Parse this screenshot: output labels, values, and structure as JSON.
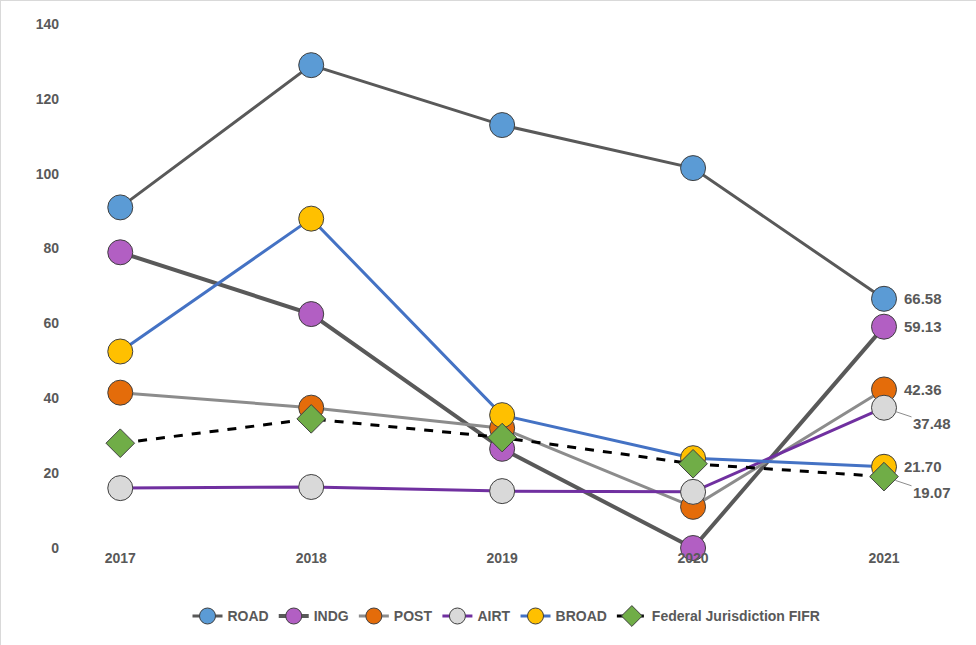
{
  "chart_data": {
    "type": "line",
    "categories": [
      "2017",
      "2018",
      "2019",
      "2020",
      "2021"
    ],
    "ylim": [
      0,
      140
    ],
    "yticks": [
      0,
      20,
      40,
      60,
      80,
      100,
      120,
      140
    ],
    "grid": false,
    "legend": "bottom",
    "series": [
      {
        "name": "ROAD",
        "color": "#5b9bd5",
        "marker": "circle",
        "line_style": "solid",
        "values": [
          91,
          129,
          113,
          101.5,
          66.58
        ],
        "value_labels": [
          null,
          null,
          null,
          null,
          "66.58"
        ]
      },
      {
        "name": "INDG",
        "color": "#b25fc3",
        "marker": "circle",
        "line_style": "solid",
        "values": [
          79,
          62.5,
          26.5,
          0,
          59.13
        ],
        "value_labels": [
          null,
          null,
          null,
          null,
          "59.13"
        ]
      },
      {
        "name": "POST",
        "color": "#e46c0a",
        "marker": "circle",
        "line_style": "solid",
        "values": [
          41.5,
          37.5,
          32,
          11,
          42.36
        ],
        "value_labels": [
          null,
          null,
          null,
          null,
          "42.36"
        ]
      },
      {
        "name": "AIRT",
        "color": "#d9d9d9",
        "marker": "circle",
        "line_style": "solid",
        "values": [
          16,
          16.3,
          15.2,
          15,
          37.48
        ],
        "value_labels": [
          null,
          null,
          null,
          null,
          "37.48"
        ]
      },
      {
        "name": "BROAD",
        "color": "#ffc000",
        "marker": "circle",
        "line_style": "solid",
        "values": [
          52.5,
          88,
          35.5,
          24,
          21.7
        ],
        "value_labels": [
          null,
          null,
          null,
          null,
          "21.70"
        ]
      },
      {
        "name": "Federal Jurisdiction FIFR",
        "color": "#70ad47",
        "marker": "diamond",
        "line_style": "dash",
        "values": [
          28,
          34.5,
          29.5,
          22.5,
          19.07
        ],
        "value_labels": [
          null,
          null,
          null,
          null,
          "19.07"
        ]
      }
    ]
  }
}
